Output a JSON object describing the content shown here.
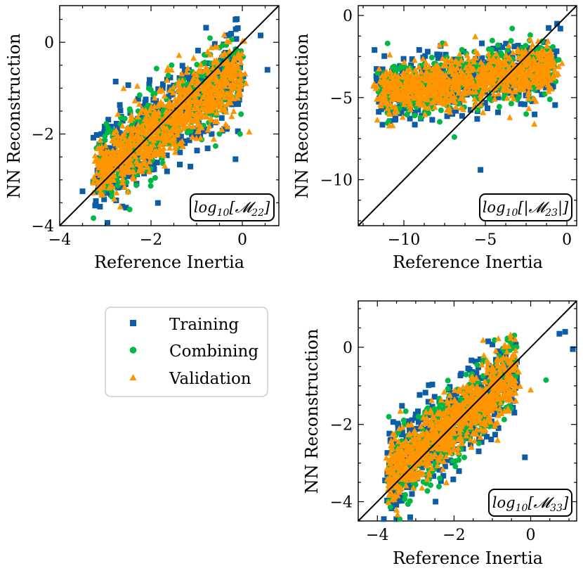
{
  "figure": {
    "series": [
      {
        "name": "Training",
        "color": "#0c5da5",
        "marker": "square"
      },
      {
        "name": "Combining",
        "color": "#00b945",
        "marker": "circle"
      },
      {
        "name": "Validation",
        "color": "#ff9500",
        "marker": "triangle"
      }
    ],
    "legend": {
      "position": "middle-left",
      "entries": [
        "Training",
        "Combining",
        "Validation"
      ]
    }
  },
  "chart_data": [
    {
      "type": "scatter",
      "id": "m22",
      "title": "",
      "annotation": "log10[M22]",
      "annotation_base": "log",
      "annotation_sub": "10",
      "annotation_body": "[𝓜",
      "annotation_index": "22",
      "annotation_close": "]",
      "xlabel": "Reference Inertia",
      "ylabel": "NN Reconstruction",
      "xlim": [
        -4,
        0.8
      ],
      "ylim": [
        -4,
        0.8
      ],
      "xticks": [
        -4,
        -2,
        0
      ],
      "xtick_labels": [
        "−4",
        "−2",
        "0"
      ],
      "yticks": [
        -4,
        -2,
        0
      ],
      "ytick_labels": [
        "−4",
        "−2",
        "0"
      ],
      "identity_line": true,
      "cloud": {
        "x_range": [
          -3.2,
          0.0
        ],
        "center_x": -1.6,
        "slope": 0.7,
        "intercept": -0.6,
        "spread": 0.45
      },
      "outliers": {
        "Training": [
          [
            0.4,
            0.15
          ],
          [
            0.55,
            -0.6
          ],
          [
            -0.15,
            -2.55
          ],
          [
            -3.5,
            -3.25
          ],
          [
            -3.1,
            -2.95
          ],
          [
            -0.05,
            -0.2
          ]
        ],
        "Combining": [
          [
            -0.05,
            -2.0
          ],
          [
            -0.3,
            -1.15
          ],
          [
            -2.25,
            -1.15
          ],
          [
            -1.55,
            -0.5
          ]
        ],
        "Validation": [
          [
            0.15,
            -1.95
          ],
          [
            -2.3,
            -0.95
          ],
          [
            -2.6,
            -1.0
          ],
          [
            -1.55,
            -0.6
          ]
        ]
      }
    },
    {
      "type": "scatter",
      "id": "m23",
      "title": "",
      "annotation": "log10[|M23|]",
      "annotation_base": "log",
      "annotation_sub": "10",
      "annotation_body": "[|𝓜",
      "annotation_index": "23",
      "annotation_close": "|]",
      "xlabel": "Reference Inertia",
      "ylabel": "NN Reconstruction",
      "xlim": [
        -12.8,
        0.6
      ],
      "ylim": [
        -12.8,
        0.6
      ],
      "xticks": [
        -10,
        -5,
        0
      ],
      "xtick_labels": [
        "−10",
        "−5",
        "0"
      ],
      "yticks": [
        -10,
        -5,
        0
      ],
      "ytick_labels": [
        "−10",
        "−5",
        "0"
      ],
      "identity_line": true,
      "cloud": {
        "x_range": [
          -11.5,
          -0.8
        ],
        "center_x": -6.0,
        "slope": 0.15,
        "intercept": -3.0,
        "spread": 0.85
      },
      "outliers": {
        "Training": [
          [
            -5.3,
            -9.4
          ],
          [
            -11.8,
            -2.1
          ],
          [
            -0.6,
            -0.5
          ],
          [
            -0.4,
            -0.8
          ],
          [
            -5.5,
            -6.3
          ]
        ],
        "Combining": [
          [
            -6.9,
            -7.4
          ],
          [
            -2.5,
            -6.0
          ],
          [
            -0.5,
            -2.7
          ],
          [
            -11.0,
            -1.7
          ]
        ],
        "Validation": [
          [
            -2.0,
            -6.6
          ],
          [
            -0.3,
            -2.9
          ],
          [
            -7.8,
            -1.8
          ],
          [
            -3.5,
            -6.2
          ]
        ]
      }
    },
    {
      "type": "scatter",
      "id": "m33",
      "title": "",
      "annotation": "log10[M33]",
      "annotation_base": "log",
      "annotation_sub": "10",
      "annotation_body": "[𝓜",
      "annotation_index": "33",
      "annotation_close": "]",
      "xlabel": "Reference Inertia",
      "ylabel": "NN Reconstruction",
      "xlim": [
        -4.5,
        1.2
      ],
      "ylim": [
        -4.5,
        1.2
      ],
      "xticks": [
        -4,
        -2,
        0
      ],
      "xtick_labels": [
        "−4",
        "−2",
        "0"
      ],
      "yticks": [
        -4,
        -2,
        0
      ],
      "ytick_labels": [
        "−4",
        "−2",
        "0"
      ],
      "identity_line": true,
      "cloud": {
        "x_range": [
          -3.7,
          -0.4
        ],
        "center_x": -2.1,
        "slope": 0.8,
        "intercept": -0.35,
        "spread": 0.5
      },
      "outliers": {
        "Training": [
          [
            1.1,
            -0.05
          ],
          [
            0.75,
            0.35
          ],
          [
            0.9,
            0.4
          ],
          [
            -0.15,
            -2.85
          ],
          [
            -3.8,
            -3.45
          ]
        ],
        "Combining": [
          [
            0.4,
            -0.85
          ],
          [
            -3.7,
            -1.8
          ],
          [
            -1.4,
            -0.9
          ],
          [
            -3.3,
            -2.0
          ]
        ],
        "Validation": [
          [
            -3.4,
            -1.65
          ],
          [
            -1.0,
            -0.5
          ],
          [
            -2.2,
            -3.5
          ],
          [
            0.0,
            -1.1
          ]
        ]
      }
    }
  ]
}
